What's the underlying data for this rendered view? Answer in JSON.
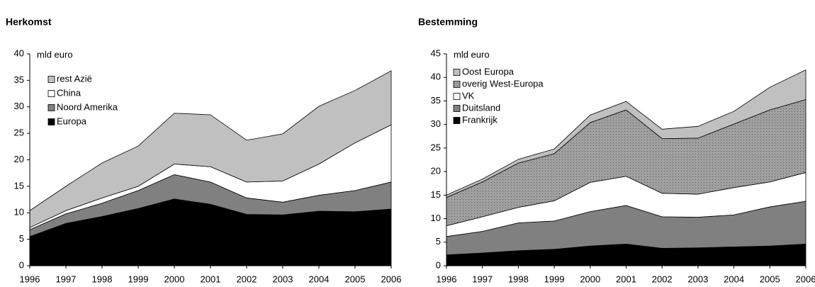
{
  "chart_data": [
    {
      "type": "area",
      "title": "Herkomst",
      "y_label": "mld euro",
      "x": [
        1996,
        1997,
        1998,
        1999,
        2000,
        2001,
        2002,
        2003,
        2004,
        2005,
        2006
      ],
      "xlim": [
        1996,
        2006
      ],
      "xticks": [
        1996,
        1997,
        1998,
        1999,
        2000,
        2001,
        2002,
        2003,
        2004,
        2005,
        2006
      ],
      "ylim": [
        0,
        40
      ],
      "yticks": [
        0,
        5,
        10,
        15,
        20,
        25,
        30,
        35,
        40
      ],
      "stacked": true,
      "series": [
        {
          "name": "Europa",
          "color": "#000000",
          "values": [
            5.5,
            8,
            9.3,
            10.8,
            12.6,
            11.6,
            9.7,
            9.6,
            10.3,
            10.2,
            10.7
          ]
        },
        {
          "name": "Noord Amerika",
          "color": "#808080",
          "values": [
            1.3,
            1.8,
            2.5,
            3.4,
            4.6,
            4.2,
            3.1,
            2.4,
            3.0,
            4.0,
            5.1
          ]
        },
        {
          "name": "China",
          "color": "#ffffff",
          "values": [
            0.4,
            0.6,
            1.0,
            0.8,
            2.0,
            2.9,
            3.0,
            4.0,
            5.9,
            9.0,
            10.8
          ]
        },
        {
          "name": "rest Azië",
          "color": "#c0c0c0",
          "values": [
            3.2,
            4.6,
            6.6,
            7.6,
            9.6,
            9.8,
            7.9,
            8.9,
            10.9,
            9.9,
            10.2
          ]
        }
      ]
    },
    {
      "type": "area",
      "title": "Bestemming",
      "y_label": "mld euro",
      "x": [
        1996,
        1997,
        1998,
        1999,
        2000,
        2001,
        2002,
        2003,
        2004,
        2005,
        2006
      ],
      "xlim": [
        1996,
        2006
      ],
      "xticks": [
        1996,
        1997,
        1998,
        1999,
        2000,
        2001,
        2002,
        2003,
        2004,
        2005,
        2006
      ],
      "ylim": [
        0,
        45
      ],
      "yticks": [
        0,
        5,
        10,
        15,
        20,
        25,
        30,
        35,
        40,
        45
      ],
      "stacked": true,
      "series": [
        {
          "name": "Frankrijk",
          "color": "#000000",
          "values": [
            2.3,
            2.7,
            3.2,
            3.5,
            4.2,
            4.6,
            3.7,
            3.8,
            4.0,
            4.2,
            4.6
          ]
        },
        {
          "name": "Duitsland",
          "color": "#808080",
          "values": [
            3.9,
            4.6,
            5.9,
            6.0,
            7.3,
            8.2,
            6.7,
            6.5,
            6.8,
            8.3,
            9.1
          ]
        },
        {
          "name": "VK",
          "color": "#ffffff",
          "values": [
            2.3,
            3.1,
            3.3,
            4.3,
            6.2,
            6.2,
            5.0,
            4.9,
            5.8,
            5.3,
            6.1
          ]
        },
        {
          "name": "overig West-Europa",
          "color": "#a0a0a0",
          "pattern": "dotted",
          "values": [
            6.0,
            7.4,
            9.4,
            10.0,
            12.7,
            14.1,
            11.6,
            11.9,
            13.5,
            15.3,
            15.5
          ]
        },
        {
          "name": "Oost Europa",
          "color": "#c0c0c0",
          "values": [
            0.5,
            0.6,
            0.8,
            1.0,
            1.6,
            1.8,
            2.0,
            2.5,
            2.7,
            4.8,
            6.3
          ]
        }
      ]
    }
  ]
}
